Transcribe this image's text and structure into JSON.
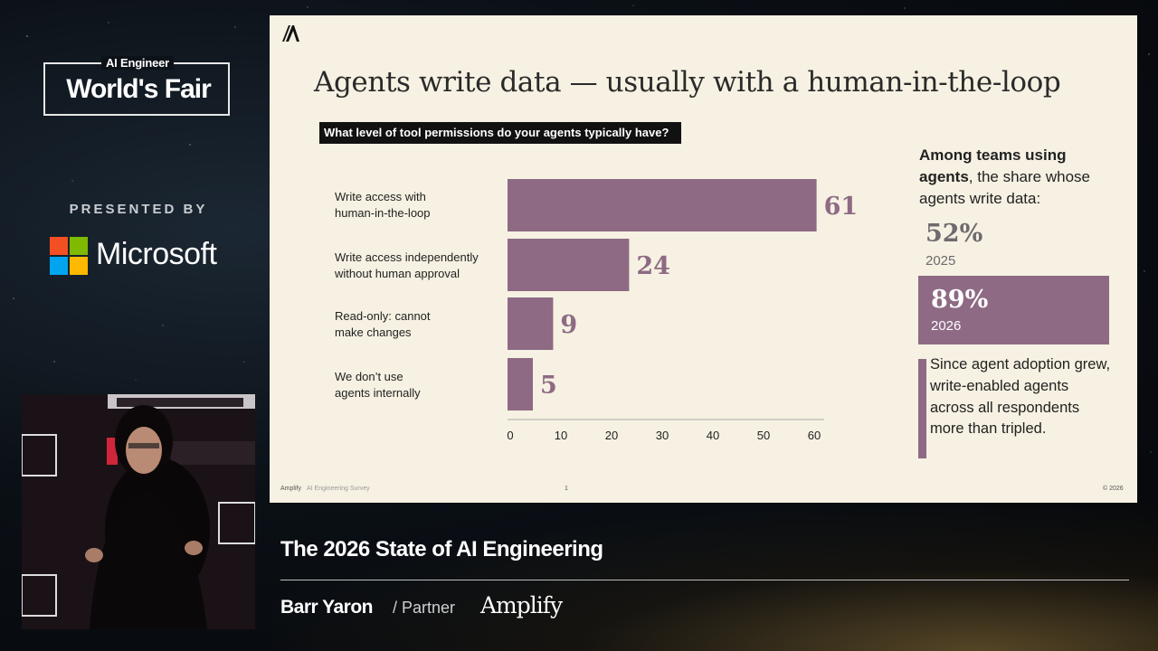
{
  "event": {
    "brand_small": "AI Engineer",
    "brand_big": "World's Fair",
    "presented_by": "PRESENTED BY",
    "sponsor": "Microsoft"
  },
  "slide": {
    "title": "Agents write data — usually with a human-in-the-loop",
    "question": "What level of tool permissions do your agents typically have?",
    "side_intro_bold_1": "Among teams using",
    "side_intro_bold_2": "agents",
    "side_intro_rest": ", the share whose agents write data:",
    "stat_2025_value": "52%",
    "stat_2025_year": "2025",
    "stat_2026_value": "89%",
    "stat_2026_year": "2026",
    "note": "Since agent adoption grew, write-enabled agents across all respondents more than tripled.",
    "footer_left": "Amplify",
    "footer_survey": "AI Engineering Survey",
    "footer_page": "1",
    "footer_right": "© 2026"
  },
  "chart_data": {
    "type": "bar",
    "orientation": "horizontal",
    "categories": [
      "Write access with human-in-the-loop",
      "Write access independently without human approval",
      "Read-only: cannot make changes",
      "We don’t use agents internally"
    ],
    "category_lines": [
      [
        "Write access with",
        "human-in-the-loop"
      ],
      [
        "Write access independently",
        "without human approval"
      ],
      [
        "Read-only: cannot",
        "make changes"
      ],
      [
        "We don’t use",
        "agents internally"
      ]
    ],
    "values": [
      61,
      24,
      9,
      5
    ],
    "xlim": [
      0,
      65
    ],
    "xticks": [
      0,
      10,
      20,
      30,
      40,
      50,
      60
    ],
    "bar_color": "#8e6a84",
    "label_color": "#8e6a84",
    "grid": false,
    "title": "",
    "xlabel": "",
    "ylabel": ""
  },
  "lower_third": {
    "talk_title": "The 2026 State of AI Engineering",
    "speaker": "Barr Yaron",
    "role": "/ Partner",
    "company": "Amplify"
  }
}
